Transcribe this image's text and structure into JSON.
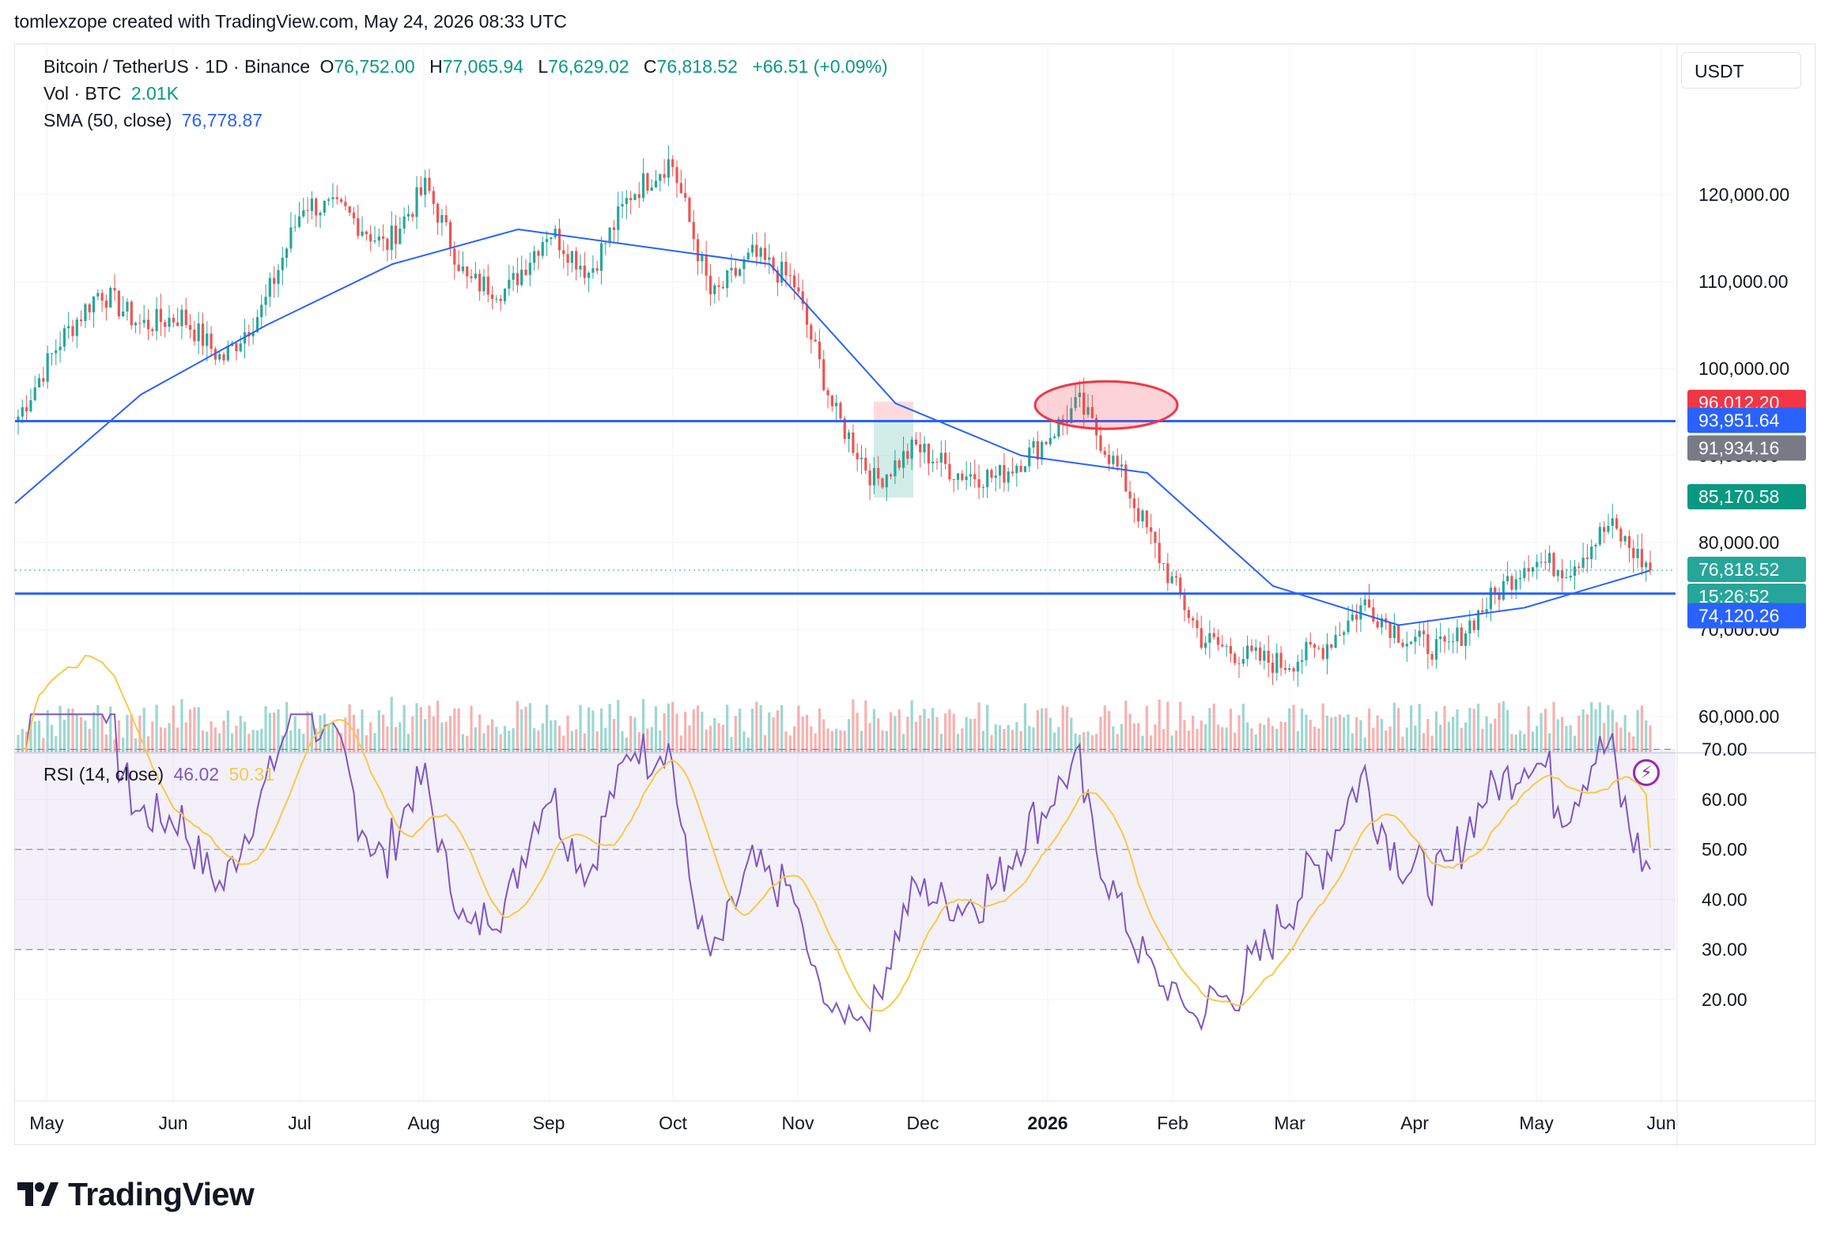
{
  "header": {
    "credit": "tomlexzope created with TradingView.com, May 24, 2026 08:33 UTC"
  },
  "legend": {
    "symbol": "Bitcoin / TetherUS · 1D · Binance",
    "o_label": "O",
    "o_value": "76,752.00",
    "h_label": "H",
    "h_value": "77,065.94",
    "l_label": "L",
    "l_value": "76,629.02",
    "c_label": "C",
    "c_value": "76,818.52",
    "change": "+66.51 (+0.09%)",
    "vol_label": "Vol · BTC",
    "vol_value": "2.01K",
    "sma_label": "SMA (50, close)",
    "sma_value": "76,778.87",
    "rsi_label": "RSI (14, close)",
    "rsi_value": "46.02",
    "rsi_ma_value": "50.31"
  },
  "currency": "USDT",
  "price_axis": [
    "120,000.00",
    "110,000.00",
    "100,000.00",
    "90,000.00",
    "80,000.00",
    "70,000.00",
    "60,000.00"
  ],
  "rsi_axis": [
    "70.00",
    "60.00",
    "50.00",
    "40.00",
    "30.00",
    "20.00"
  ],
  "time_axis": [
    "May",
    "Jun",
    "Jul",
    "Aug",
    "Sep",
    "Oct",
    "Nov",
    "Dec",
    "2026",
    "Feb",
    "Mar",
    "Apr",
    "May",
    "Jun"
  ],
  "price_tags": [
    {
      "text": "96,012.20",
      "color": "#f23645"
    },
    {
      "text": "93,951.64",
      "color": "#2962ff"
    },
    {
      "text": "91,934.16",
      "color": "#787b86"
    },
    {
      "text": "85,170.58",
      "color": "#089981"
    },
    {
      "text": "76,818.52",
      "color": "#26a69a"
    },
    {
      "text": "15:26:52",
      "color": "#26a69a"
    },
    {
      "text": "74,120.26",
      "color": "#2962ff"
    }
  ],
  "colors": {
    "up": "#26a69a",
    "down": "#ef5350",
    "sma": "#2962ff",
    "rsi": "#7e57c2",
    "rsi_ma": "#f7c948",
    "hline": "#2962ff"
  },
  "logo_text": "TradingView",
  "chart_data": {
    "type": "candlestick",
    "title": "Bitcoin / TetherUS · 1D · Binance",
    "ylim": [
      55000,
      128000
    ],
    "x_ticks": [
      "May",
      "Jun",
      "Jul",
      "Aug",
      "Sep",
      "Oct",
      "Nov",
      "Dec",
      "2026",
      "Feb",
      "Mar",
      "Apr",
      "May",
      "Jun"
    ],
    "horizontal_lines": [
      93951.64,
      74120.26
    ],
    "last_price": 76818.52,
    "close_approx": [
      {
        "x": "May",
        "y": 94500
      },
      {
        "x": "mid-May",
        "y": 103000
      },
      {
        "x": "late-May",
        "y": 109000
      },
      {
        "x": "Jun",
        "y": 105000
      },
      {
        "x": "mid-Jun",
        "y": 106000
      },
      {
        "x": "late-Jun",
        "y": 101000
      },
      {
        "x": "Jul",
        "y": 107000
      },
      {
        "x": "mid-Jul",
        "y": 119000
      },
      {
        "x": "late-Jul",
        "y": 118000
      },
      {
        "x": "Aug",
        "y": 114000
      },
      {
        "x": "mid-Aug",
        "y": 121000
      },
      {
        "x": "late-Aug",
        "y": 110000
      },
      {
        "x": "Sep",
        "y": 109000
      },
      {
        "x": "mid-Sep",
        "y": 116000
      },
      {
        "x": "late-Sep",
        "y": 111000
      },
      {
        "x": "Oct",
        "y": 120000
      },
      {
        "x": "early-Oct",
        "y": 124000
      },
      {
        "x": "mid-Oct",
        "y": 108000
      },
      {
        "x": "late-Oct",
        "y": 113000
      },
      {
        "x": "Nov",
        "y": 110000
      },
      {
        "x": "mid-Nov",
        "y": 95000
      },
      {
        "x": "late-Nov",
        "y": 87000
      },
      {
        "x": "Dec",
        "y": 91000
      },
      {
        "x": "mid-Dec",
        "y": 88000
      },
      {
        "x": "late-Dec",
        "y": 87500
      },
      {
        "x": "2026",
        "y": 91000
      },
      {
        "x": "mid-Jan",
        "y": 96000
      },
      {
        "x": "late-Jan",
        "y": 88000
      },
      {
        "x": "Feb",
        "y": 78000
      },
      {
        "x": "early-Feb",
        "y": 69000
      },
      {
        "x": "mid-Feb",
        "y": 67000
      },
      {
        "x": "late-Feb",
        "y": 66000
      },
      {
        "x": "Mar",
        "y": 68000
      },
      {
        "x": "mid-Mar",
        "y": 73000
      },
      {
        "x": "late-Mar",
        "y": 69000
      },
      {
        "x": "Apr",
        "y": 67500
      },
      {
        "x": "mid-Apr",
        "y": 73000
      },
      {
        "x": "late-Apr",
        "y": 78000
      },
      {
        "x": "May",
        "y": 77000
      },
      {
        "x": "mid-May",
        "y": 82000
      },
      {
        "x": "late-May",
        "y": 76818.52
      }
    ],
    "sma50_approx": [
      {
        "x": "May",
        "y": 84500
      },
      {
        "x": "Jun",
        "y": 97000
      },
      {
        "x": "Jul",
        "y": 105000
      },
      {
        "x": "Aug",
        "y": 112000
      },
      {
        "x": "Sep",
        "y": 116000
      },
      {
        "x": "Oct",
        "y": 114000
      },
      {
        "x": "Nov",
        "y": 112000
      },
      {
        "x": "Dec",
        "y": 96000
      },
      {
        "x": "2026",
        "y": 90000
      },
      {
        "x": "Feb",
        "y": 88000
      },
      {
        "x": "Mar",
        "y": 75000
      },
      {
        "x": "Apr",
        "y": 70500
      },
      {
        "x": "May",
        "y": 72500
      },
      {
        "x": "late-May",
        "y": 76778.87
      }
    ],
    "rsi": {
      "levels": [
        70,
        50,
        30
      ],
      "ylim": [
        13,
        77
      ],
      "last": 46.02,
      "ma_last": 50.31
    }
  }
}
